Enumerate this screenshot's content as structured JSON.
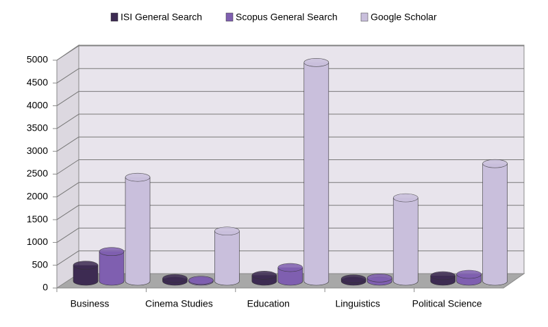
{
  "chart_data": {
    "type": "bar3d",
    "categories": [
      "Business",
      "Cinema Studies",
      "Education",
      "Linguistics",
      "Political Science"
    ],
    "series": [
      {
        "name": "ISI General Search",
        "color": "#3d2b52",
        "values": [
          350,
          60,
          130,
          50,
          120
        ]
      },
      {
        "name": "Scopus General Search",
        "color": "#7f5fb0",
        "values": [
          650,
          20,
          300,
          70,
          150
        ]
      },
      {
        "name": "Google Scholar",
        "color": "#c9bfdc",
        "values": [
          2280,
          1100,
          4800,
          1830,
          2580
        ]
      }
    ],
    "ylim": [
      0,
      5000
    ],
    "yticks": [
      0,
      500,
      1000,
      1500,
      2000,
      2500,
      3000,
      3500,
      4000,
      4500,
      5000
    ],
    "grid": true,
    "legend": "top"
  }
}
